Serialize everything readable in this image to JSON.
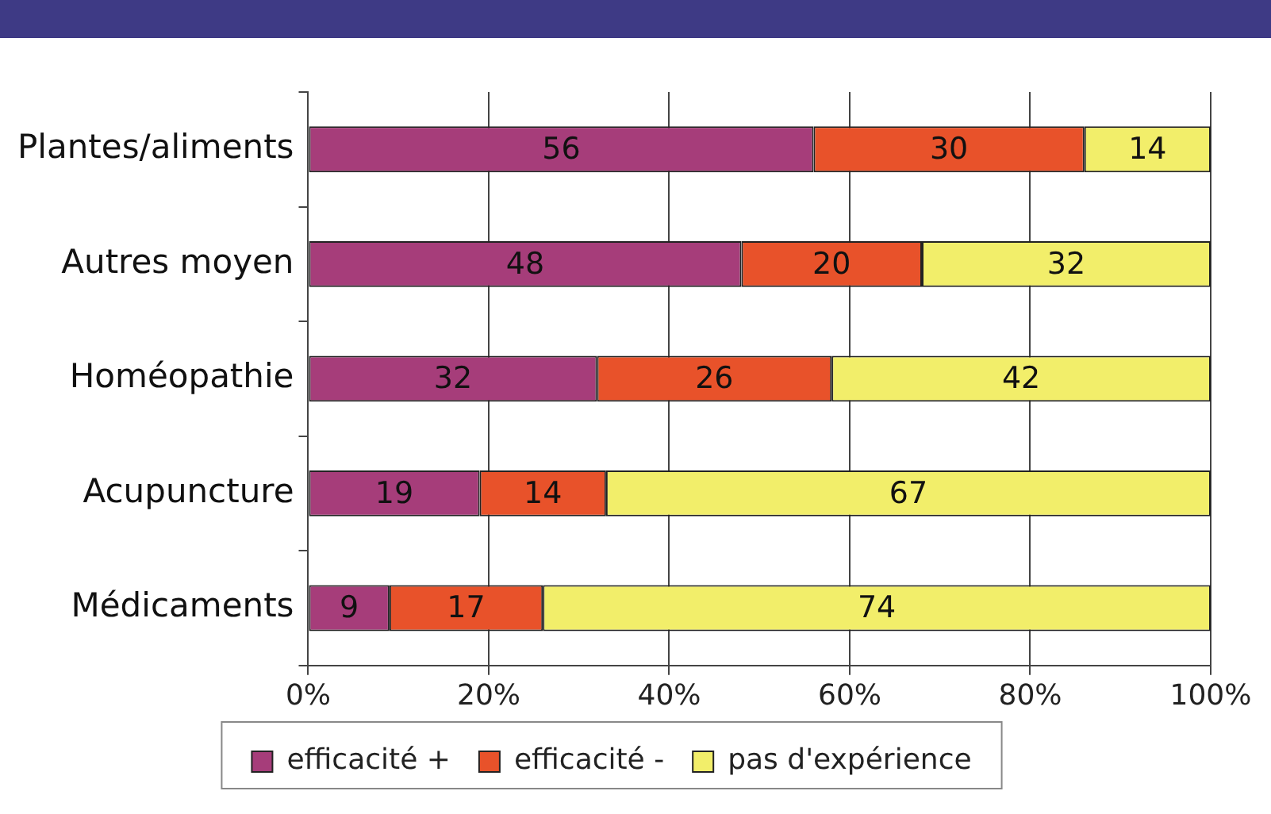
{
  "chart_data": {
    "type": "bar",
    "orientation": "horizontal",
    "stacked": true,
    "categories": [
      "Plantes/aliments",
      "Autres moyen",
      "Homéopathie",
      "Acupuncture",
      "Médicaments"
    ],
    "series": [
      {
        "name": "efficacité +",
        "color": "#a63d7a",
        "values": [
          56,
          48,
          32,
          19,
          9
        ]
      },
      {
        "name": "efficacité -",
        "color": "#e8522a",
        "values": [
          30,
          20,
          26,
          14,
          17
        ]
      },
      {
        "name": "pas d'expérience",
        "color": "#f2ee6a",
        "values": [
          14,
          32,
          42,
          67,
          74
        ]
      }
    ],
    "xlim": [
      0,
      100
    ],
    "xticks": [
      {
        "value": 0,
        "label": "0%"
      },
      {
        "value": 20,
        "label": "20%"
      },
      {
        "value": 40,
        "label": "40%"
      },
      {
        "value": 60,
        "label": "60%"
      },
      {
        "value": 80,
        "label": "80%"
      },
      {
        "value": 100,
        "label": "100%"
      }
    ],
    "grid": "x",
    "legend": "bottom",
    "data_labels": true
  }
}
